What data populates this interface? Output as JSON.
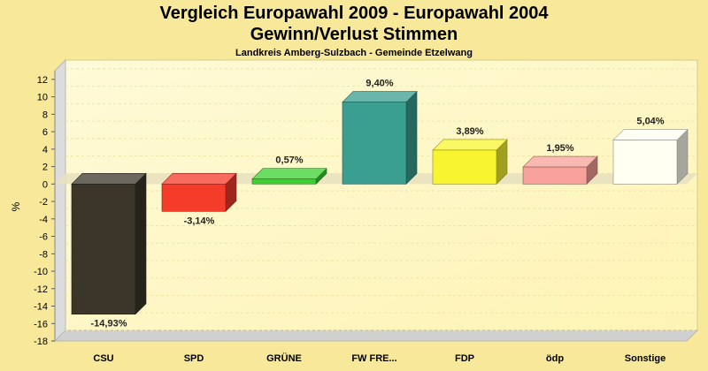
{
  "chart_data": {
    "type": "bar",
    "title": "Vergleich Europawahl 2009 - Europawahl 2004",
    "subtitle": "Gewinn/Verlust Stimmen",
    "caption": "Landkreis Amberg-Sulzbach - Gemeinde Etzelwang",
    "xlabel": "",
    "ylabel": "%",
    "ylim": [
      -18,
      13
    ],
    "yticks": [
      12,
      10,
      8,
      6,
      4,
      2,
      0,
      -2,
      -4,
      -6,
      -8,
      -10,
      -12,
      -14,
      -16,
      -18
    ],
    "grid": true,
    "categories": [
      "CSU",
      "SPD",
      "GRÜNE",
      "FW FRE...",
      "FDP",
      "ödp",
      "Sonstige"
    ],
    "values": [
      -14.93,
      -3.14,
      0.57,
      9.4,
      3.89,
      1.95,
      5.04
    ],
    "value_labels": [
      "-14,93%",
      "-3,14%",
      "0,57%",
      "9,40%",
      "3,89%",
      "1,95%",
      "5,04%"
    ],
    "colors": [
      "#3b3629",
      "#f53b2a",
      "#3ad12e",
      "#3a9e90",
      "#f8f530",
      "#f8a09a",
      "#fffff2"
    ]
  }
}
